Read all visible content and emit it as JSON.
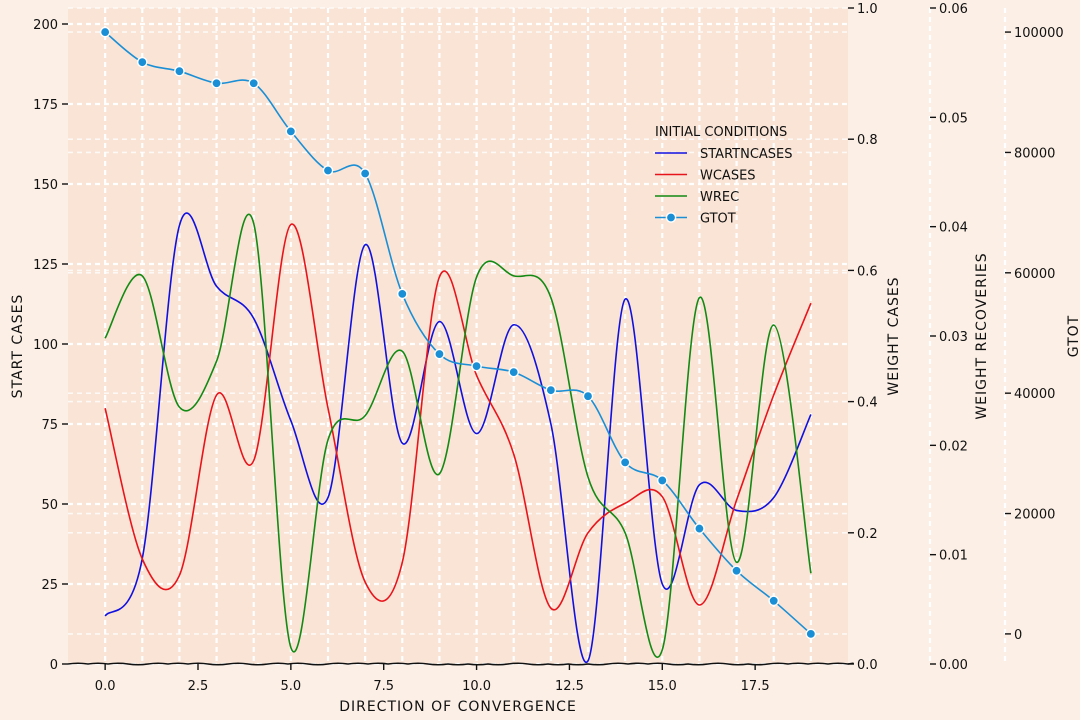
{
  "chart_data": {
    "type": "line",
    "xlabel": "DIRECTION OF CONVERGENCE",
    "x": [
      0,
      1,
      2,
      3,
      4,
      5,
      6,
      7,
      8,
      9,
      10,
      11,
      12,
      13,
      14,
      15,
      16,
      17,
      18,
      19
    ],
    "xlim": [
      -1,
      20
    ],
    "xticks": [
      "0.0",
      "2.5",
      "5.0",
      "7.5",
      "10.0",
      "12.5",
      "15.0",
      "17.5"
    ],
    "xtick_values": [
      0,
      2.5,
      5,
      7.5,
      10,
      12.5,
      15,
      17.5
    ],
    "legend_title": "INITIAL CONDITIONS",
    "legend_position": "upper-right",
    "grid": true,
    "axes": [
      {
        "id": "y1",
        "label": "START CASES",
        "side": "left",
        "ylim": [
          0,
          205
        ],
        "ticks": [
          0,
          25,
          50,
          75,
          100,
          125,
          150,
          175,
          200
        ],
        "tick_labels": [
          "0",
          "25",
          "50",
          "75",
          "100",
          "125",
          "150",
          "175",
          "200"
        ]
      },
      {
        "id": "y2",
        "label": "WEIGHT CASES",
        "side": "right",
        "ylim": [
          0,
          1.0
        ],
        "ticks": [
          0,
          0.2,
          0.4,
          0.6,
          0.8,
          1.0
        ],
        "tick_labels": [
          "0.0",
          "0.2",
          "0.4",
          "0.6",
          "0.8",
          "1.0"
        ]
      },
      {
        "id": "y3",
        "label": "WEIGHT RECOVERIES",
        "side": "right",
        "ylim": [
          0,
          0.06
        ],
        "ticks": [
          0,
          0.01,
          0.02,
          0.03,
          0.04,
          0.05,
          0.06
        ],
        "tick_labels": [
          "0.00",
          "0.01",
          "0.02",
          "0.03",
          "0.04",
          "0.05",
          "0.06"
        ]
      },
      {
        "id": "y4",
        "label": "GTOT",
        "side": "right",
        "ylim": [
          -5000,
          104000
        ],
        "ticks": [
          0,
          20000,
          40000,
          60000,
          80000,
          100000
        ],
        "tick_labels": [
          "0",
          "20000",
          "40000",
          "60000",
          "80000",
          "100000"
        ]
      }
    ],
    "series": [
      {
        "name": "STARTNCASES",
        "axis": "y1",
        "color": "#1010e0",
        "marker": false,
        "values": [
          15,
          33,
          137,
          118,
          108,
          76,
          52,
          131,
          69,
          107,
          72,
          106,
          75,
          1,
          114,
          25,
          56,
          48,
          52,
          78
        ]
      },
      {
        "name": "WCASES",
        "axis": "y2",
        "color": "#e8141c",
        "marker": false,
        "values": [
          0.39,
          0.16,
          0.135,
          0.41,
          0.31,
          0.67,
          0.39,
          0.125,
          0.155,
          0.59,
          0.44,
          0.32,
          0.085,
          0.2,
          0.245,
          0.255,
          0.09,
          0.25,
          0.41,
          0.55
        ]
      },
      {
        "name": "WREC",
        "axis": "y3",
        "color": "#138a13",
        "marker": false,
        "values": [
          0.0298,
          0.0355,
          0.0235,
          0.0277,
          0.0403,
          0.0015,
          0.0205,
          0.0227,
          0.0286,
          0.0174,
          0.0354,
          0.0355,
          0.0335,
          0.0171,
          0.012,
          0.0013,
          0.0335,
          0.0093,
          0.031,
          0.0083
        ]
      },
      {
        "name": "GTOT",
        "axis": "y4",
        "color": "#1a8fd6",
        "marker": true,
        "values": [
          100000,
          95000,
          93500,
          91500,
          91500,
          83500,
          77000,
          76500,
          56500,
          46500,
          44500,
          43500,
          40500,
          39500,
          28500,
          25500,
          17500,
          10500,
          5500,
          0
        ]
      }
    ]
  }
}
